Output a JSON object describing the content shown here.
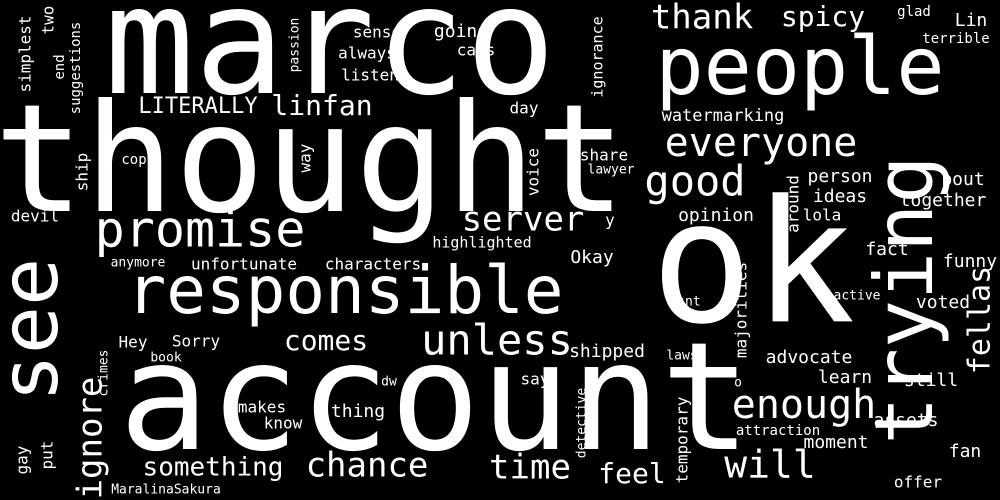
{
  "background": "#000000",
  "text_color": "#ffffff",
  "words": [
    "marco",
    "thought",
    "account",
    "ok",
    "people",
    "trying",
    "see",
    "responsible",
    "promise",
    "unless",
    "chance",
    "time",
    "good",
    "everyone",
    "enough",
    "will",
    "server",
    "ignore",
    "something",
    "thank",
    "spicy",
    "fellas",
    "comes",
    "feel",
    "LITERALLY",
    "linfan",
    "watermarking",
    "opinion",
    "ideas",
    "person",
    "together",
    "bout",
    "funny",
    "voted",
    "still",
    "fan",
    "offer",
    "assets",
    "moment",
    "learn",
    "advocate",
    "shipped",
    "majorities",
    "temporary",
    "detective",
    "attraction",
    "fact",
    "characters",
    "unfortunate",
    "highlighted",
    "Okay",
    "lola",
    "around",
    "lawyer",
    "share",
    "voice",
    "way",
    "cop",
    "ship",
    "devil",
    "anymore",
    "Hey",
    "Sorry",
    "book",
    "crimes",
    "gay",
    "put",
    "MaralinaSakura",
    "makes",
    "thing",
    "know",
    "dw",
    "say",
    "laws",
    "isnt",
    "active",
    "o",
    "glad",
    "Lin",
    "terrible",
    "sense",
    "always",
    "listen",
    "going",
    "caps",
    "day",
    "ignorance",
    "passion",
    "simplest",
    "end",
    "two",
    "suggestions",
    "y"
  ]
}
